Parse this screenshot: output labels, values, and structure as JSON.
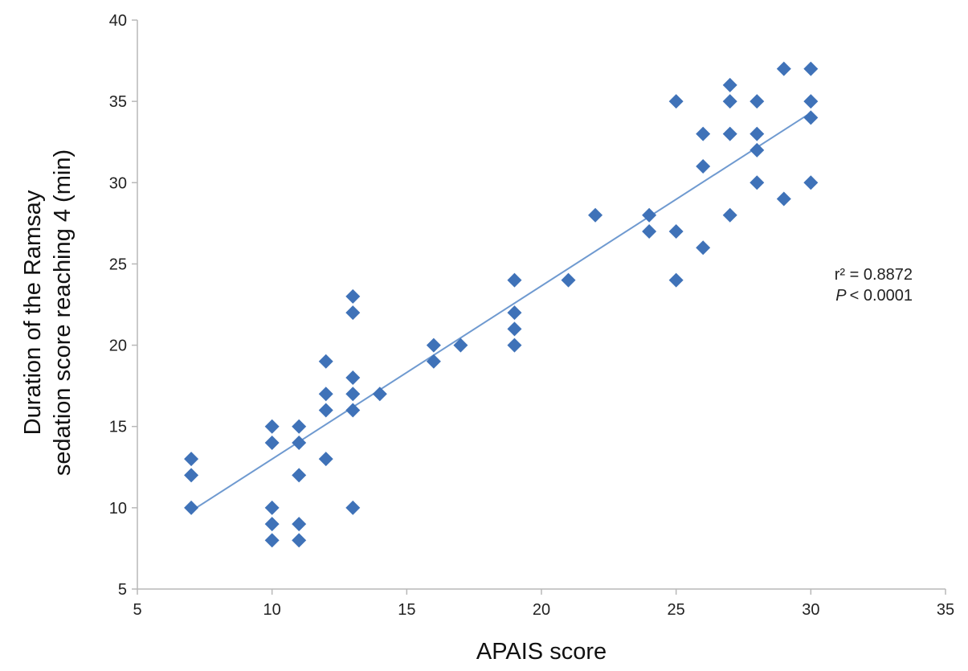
{
  "chart_data": {
    "type": "scatter",
    "xlabel": "APAIS score",
    "ylabel_lines": [
      "Duration of the Ramsay",
      "sedation score reaching 4 (min)"
    ],
    "xlim": [
      5,
      35
    ],
    "ylim": [
      5,
      40
    ],
    "x_ticks": [
      5,
      10,
      15,
      20,
      25,
      30,
      35
    ],
    "y_ticks": [
      5,
      10,
      15,
      20,
      25,
      30,
      35,
      40
    ],
    "grid": false,
    "marker": "diamond",
    "marker_color": "#3f72b8",
    "trendline_color": "#6f9ad0",
    "points": [
      {
        "x": 7,
        "y": 13
      },
      {
        "x": 7,
        "y": 12
      },
      {
        "x": 7,
        "y": 10
      },
      {
        "x": 10,
        "y": 15
      },
      {
        "x": 10,
        "y": 14
      },
      {
        "x": 10,
        "y": 10
      },
      {
        "x": 10,
        "y": 9
      },
      {
        "x": 10,
        "y": 8
      },
      {
        "x": 11,
        "y": 15
      },
      {
        "x": 11,
        "y": 14
      },
      {
        "x": 11,
        "y": 12
      },
      {
        "x": 11,
        "y": 9
      },
      {
        "x": 11,
        "y": 8
      },
      {
        "x": 12,
        "y": 19
      },
      {
        "x": 12,
        "y": 17
      },
      {
        "x": 12,
        "y": 16
      },
      {
        "x": 12,
        "y": 13
      },
      {
        "x": 13,
        "y": 23
      },
      {
        "x": 13,
        "y": 22
      },
      {
        "x": 13,
        "y": 18
      },
      {
        "x": 13,
        "y": 17
      },
      {
        "x": 13,
        "y": 16
      },
      {
        "x": 13,
        "y": 10
      },
      {
        "x": 14,
        "y": 17
      },
      {
        "x": 16,
        "y": 20
      },
      {
        "x": 16,
        "y": 19
      },
      {
        "x": 17,
        "y": 20
      },
      {
        "x": 19,
        "y": 24
      },
      {
        "x": 19,
        "y": 22
      },
      {
        "x": 19,
        "y": 21
      },
      {
        "x": 19,
        "y": 20
      },
      {
        "x": 21,
        "y": 24
      },
      {
        "x": 22,
        "y": 28
      },
      {
        "x": 24,
        "y": 28
      },
      {
        "x": 24,
        "y": 27
      },
      {
        "x": 25,
        "y": 35
      },
      {
        "x": 25,
        "y": 27
      },
      {
        "x": 25,
        "y": 24
      },
      {
        "x": 26,
        "y": 33
      },
      {
        "x": 26,
        "y": 31
      },
      {
        "x": 26,
        "y": 26
      },
      {
        "x": 27,
        "y": 36
      },
      {
        "x": 27,
        "y": 35
      },
      {
        "x": 27,
        "y": 33
      },
      {
        "x": 27,
        "y": 28
      },
      {
        "x": 28,
        "y": 35
      },
      {
        "x": 28,
        "y": 33
      },
      {
        "x": 28,
        "y": 32
      },
      {
        "x": 28,
        "y": 30
      },
      {
        "x": 29,
        "y": 37
      },
      {
        "x": 29,
        "y": 29
      },
      {
        "x": 30,
        "y": 37
      },
      {
        "x": 30,
        "y": 35
      },
      {
        "x": 30,
        "y": 34
      },
      {
        "x": 30,
        "y": 30
      }
    ],
    "trendline": {
      "x": [
        7,
        30
      ],
      "y": [
        9.8,
        34.3
      ]
    },
    "annotations": {
      "r_squared": "r² = 0.8872",
      "p_symbol": "P",
      "p_value": "< 0.0001"
    }
  }
}
